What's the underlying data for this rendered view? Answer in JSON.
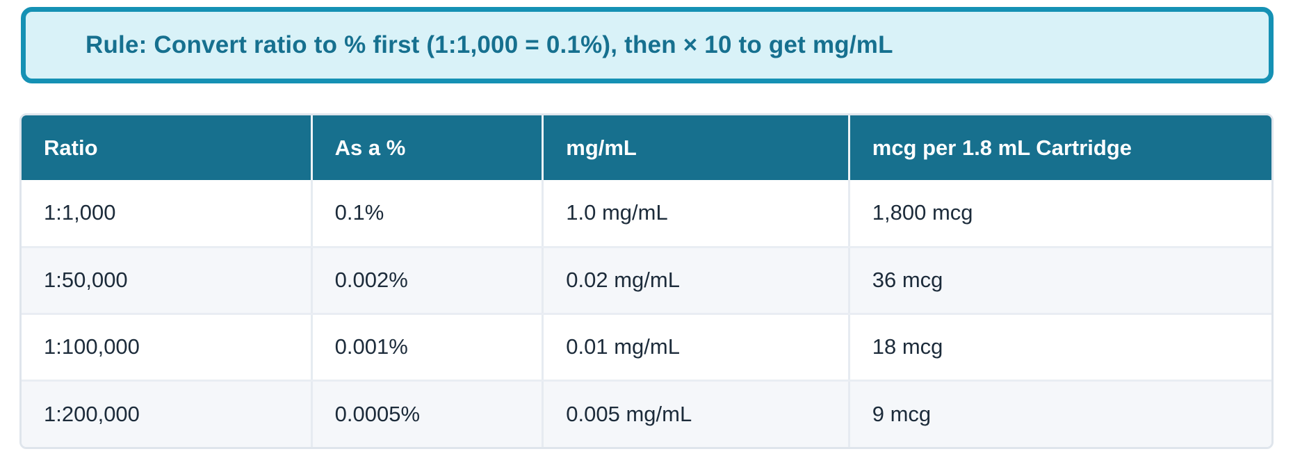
{
  "banner": {
    "text": "Rule: Convert ratio to % first (1:1,000 = 0.1%), then × 10 to get mg/mL"
  },
  "table": {
    "headers": [
      "Ratio",
      "As a %",
      "mg/mL",
      "mcg per 1.8 mL Cartridge"
    ],
    "rows": [
      [
        "1:1,000",
        "0.1%",
        "1.0 mg/mL",
        "1,800 mcg"
      ],
      [
        "1:50,000",
        "0.002%",
        "0.02 mg/mL",
        "36 mcg"
      ],
      [
        "1:100,000",
        "0.001%",
        "0.01 mg/mL",
        "18 mcg"
      ],
      [
        "1:200,000",
        "0.0005%",
        "0.005 mg/mL",
        "9 mcg"
      ]
    ]
  },
  "colors": {
    "accent_border_teal": "#1591b4",
    "banner_background": "#d9f2f8",
    "banner_text": "#16708f",
    "header_background": "#17708e",
    "header_text": "#ffffff",
    "row_alt_background": "#f5f7fa",
    "cell_text": "#1c2b3a"
  },
  "chart_data": {
    "type": "table",
    "title": "Rule: Convert ratio to % first (1:1,000 = 0.1%), then × 10 to get mg/mL",
    "columns": [
      "Ratio",
      "As a %",
      "mg/mL",
      "mcg per 1.8 mL Cartridge"
    ],
    "rows": [
      {
        "ratio": "1:1,000",
        "percent": "0.1%",
        "mg_per_ml": "1.0 mg/mL",
        "mcg_per_cartridge": "1,800 mcg"
      },
      {
        "ratio": "1:50,000",
        "percent": "0.002%",
        "mg_per_ml": "0.02 mg/mL",
        "mcg_per_cartridge": "36 mcg"
      },
      {
        "ratio": "1:100,000",
        "percent": "0.001%",
        "mg_per_ml": "0.01 mg/mL",
        "mcg_per_cartridge": "18 mcg"
      },
      {
        "ratio": "1:200,000",
        "percent": "0.0005%",
        "mg_per_ml": "0.005 mg/mL",
        "mcg_per_cartridge": "9 mcg"
      }
    ]
  }
}
